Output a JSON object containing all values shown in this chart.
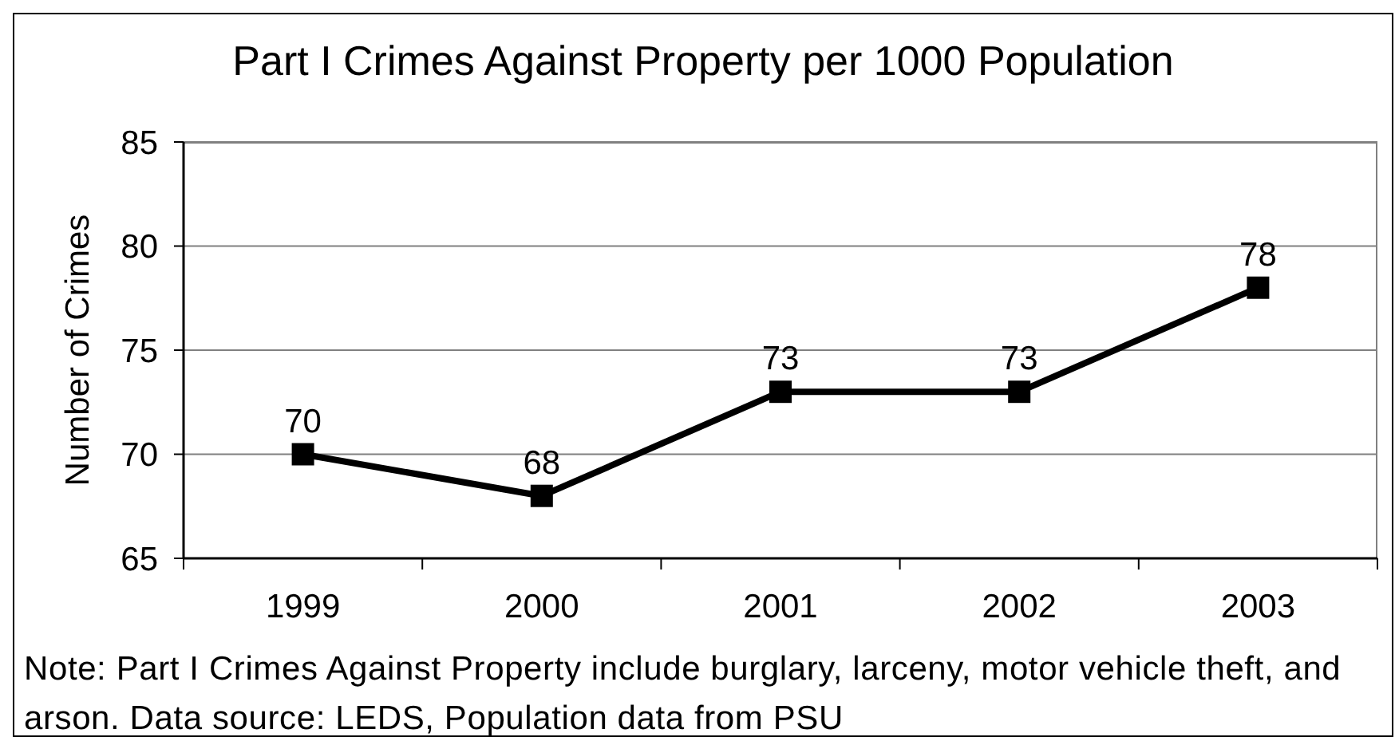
{
  "chart_data": {
    "type": "line",
    "title": "Part I Crimes Against Property per 1000 Population",
    "ylabel": "Number of Crimes",
    "categories": [
      "1999",
      "2000",
      "2001",
      "2002",
      "2003"
    ],
    "values": [
      70,
      68,
      73,
      73,
      78
    ],
    "color": "#000000",
    "ylim": [
      65,
      85
    ],
    "yticks": [
      65,
      70,
      75,
      80,
      85
    ],
    "grid": "y",
    "marker": "square",
    "line_style": "solid",
    "data_labels": true,
    "annotations": [
      "Note: Part I Crimes Against Property include burglary, larceny, motor vehicle theft, and arson. Data source: LEDS, Population data from PSU"
    ]
  }
}
